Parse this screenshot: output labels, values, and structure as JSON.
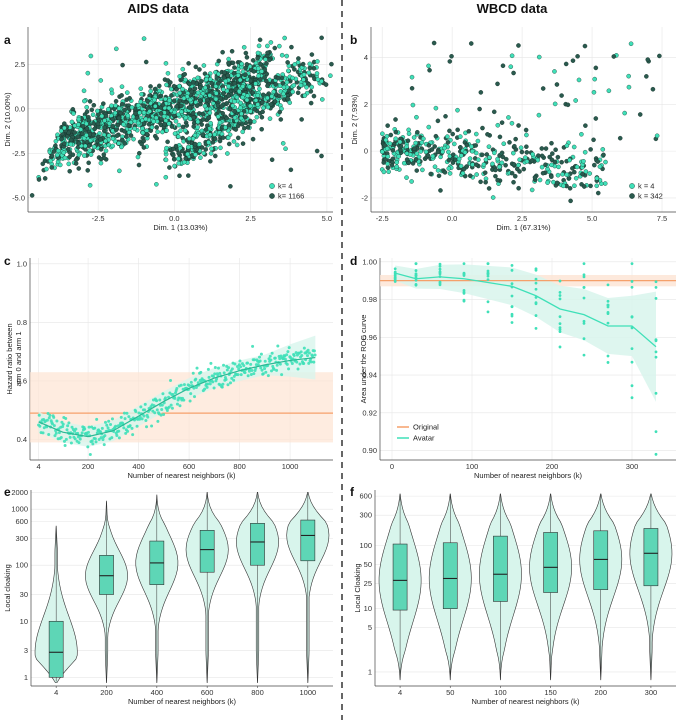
{
  "headers": {
    "left": "AIDS data",
    "right": "WBCD data"
  },
  "panel_labels": [
    "a",
    "b",
    "c",
    "d",
    "e",
    "f"
  ],
  "colors": {
    "light": "#3fe0b8",
    "dark": "#2a5a4e",
    "orange": "#f5a06a",
    "fill_light": "#d8f5ec",
    "box": "#5ed6b6"
  },
  "chart_data": [
    {
      "id": "a",
      "type": "scatter",
      "xlabel": "Dim. 1 (13.03%)",
      "ylabel": "Dim. 2 (10.00%)",
      "xlim": [
        -4.8,
        5.2
      ],
      "ylim": [
        -5.8,
        4.6
      ],
      "xticks": [
        "-2.5",
        "0.0",
        "2.5",
        "5.0"
      ],
      "xtick_values": [
        -2.5,
        0,
        2.5,
        5
      ],
      "yticks": [
        "-5.0",
        "-2.5",
        "0.0",
        "2.5"
      ],
      "ytick_values": [
        -5,
        -2.5,
        0,
        2.5
      ],
      "grid": true,
      "legend": "bottom-right",
      "series": [
        {
          "name": "k= 4",
          "color": "#3fe0b8"
        },
        {
          "name": "k= 1166",
          "color": "#2a5a4e"
        }
      ]
    },
    {
      "id": "b",
      "type": "scatter",
      "xlabel": "Dim. 1 (67.31%)",
      "ylabel": "Dim. 2 (7.93%)",
      "xlim": [
        -2.9,
        8.0
      ],
      "ylim": [
        -2.6,
        5.3
      ],
      "xticks": [
        "-2.5",
        "0.0",
        "2.5",
        "5.0",
        "7.5"
      ],
      "xtick_values": [
        -2.5,
        0,
        2.5,
        5,
        7.5
      ],
      "yticks": [
        "-2",
        "0",
        "2",
        "4"
      ],
      "ytick_values": [
        -2,
        0,
        2,
        4
      ],
      "grid": true,
      "legend": "bottom-right",
      "series": [
        {
          "name": "k = 4",
          "color": "#3fe0b8"
        },
        {
          "name": "k = 342",
          "color": "#2a5a4e"
        }
      ]
    },
    {
      "id": "c",
      "type": "scatter",
      "xlabel": "Number of nearest neighbors (k)",
      "ylabel": "Hazard ratio between arm 0 and arm 1",
      "xlim": [
        -30,
        1170
      ],
      "ylim": [
        0.33,
        1.02
      ],
      "xticks": [
        "4",
        "200",
        "400",
        "600",
        "800",
        "1000"
      ],
      "xtick_values": [
        4,
        200,
        400,
        600,
        800,
        1000
      ],
      "yticks": [
        "0.4",
        "0.6",
        "0.8",
        "1.0"
      ],
      "ytick_values": [
        0.4,
        0.6,
        0.8,
        1.0
      ],
      "original_hr": 0.49,
      "original_ci": [
        0.39,
        0.63
      ],
      "trend": [
        [
          4,
          0.46
        ],
        [
          100,
          0.425
        ],
        [
          200,
          0.41
        ],
        [
          300,
          0.43
        ],
        [
          400,
          0.48
        ],
        [
          500,
          0.53
        ],
        [
          600,
          0.575
        ],
        [
          700,
          0.61
        ],
        [
          800,
          0.635
        ],
        [
          900,
          0.655
        ],
        [
          1000,
          0.67
        ],
        [
          1100,
          0.68
        ]
      ]
    },
    {
      "id": "d",
      "type": "scatter",
      "xlabel": "Number of nearest neighbors (k)",
      "ylabel": "Area under the ROC curve",
      "xlim": [
        -15,
        355
      ],
      "ylim": [
        0.895,
        1.002
      ],
      "xticks": [
        "0",
        "100",
        "200",
        "300"
      ],
      "xtick_values": [
        0,
        100,
        200,
        300
      ],
      "yticks": [
        "0.90",
        "0.92",
        "0.94",
        "0.96",
        "0.98",
        "1.00"
      ],
      "ytick_values": [
        0.9,
        0.92,
        0.94,
        0.96,
        0.98,
        1.0
      ],
      "original_auc": 0.99,
      "original_ci": [
        0.987,
        0.993
      ],
      "ks": [
        4,
        30,
        60,
        90,
        120,
        150,
        180,
        210,
        240,
        270,
        300,
        330
      ],
      "avatar_mean": [
        0.994,
        0.991,
        0.992,
        0.991,
        0.989,
        0.987,
        0.982,
        0.975,
        0.972,
        0.966,
        0.966,
        0.955
      ],
      "legend": "bottom-left",
      "series": [
        {
          "name": "Original",
          "color": "#f5a06a"
        },
        {
          "name": "Avatar",
          "color": "#3fe0b8"
        }
      ]
    },
    {
      "id": "e",
      "type": "violin",
      "xlabel": "Number of nearest neighbors (k)",
      "ylabel": "Local cloaking",
      "scale": "log",
      "ylim": [
        0.7,
        2200
      ],
      "categories": [
        "4",
        "200",
        "400",
        "600",
        "800",
        "1000"
      ],
      "yticks": [
        "1",
        "3",
        "10",
        "30",
        "100",
        "300",
        "600",
        "1000",
        "2000"
      ],
      "ytick_values": [
        1,
        3,
        10,
        30,
        100,
        300,
        600,
        1000,
        2000
      ],
      "boxes": [
        {
          "q1": 1.0,
          "median": 2.8,
          "q3": 10,
          "min": 0.8,
          "max": 500
        },
        {
          "q1": 30,
          "median": 65,
          "q3": 150,
          "min": 0.8,
          "max": 1400
        },
        {
          "q1": 45,
          "median": 110,
          "q3": 270,
          "min": 0.8,
          "max": 1800
        },
        {
          "q1": 75,
          "median": 190,
          "q3": 420,
          "min": 0.8,
          "max": 2000
        },
        {
          "q1": 100,
          "median": 260,
          "q3": 560,
          "min": 0.8,
          "max": 2000
        },
        {
          "q1": 120,
          "median": 340,
          "q3": 640,
          "min": 0.8,
          "max": 2000
        }
      ]
    },
    {
      "id": "f",
      "type": "violin",
      "xlabel": "Number of nearest neighbors (k)",
      "ylabel": "Local Cloaking",
      "scale": "log",
      "ylim": [
        0.6,
        750
      ],
      "categories": [
        "4",
        "50",
        "100",
        "150",
        "200",
        "300"
      ],
      "yticks": [
        "1",
        "5",
        "10",
        "25",
        "50",
        "100",
        "300",
        "600"
      ],
      "ytick_values": [
        1,
        5,
        10,
        25,
        50,
        100,
        300,
        600
      ],
      "boxes": [
        {
          "q1": 9.5,
          "median": 28,
          "q3": 105,
          "min": 0.75,
          "max": 650
        },
        {
          "q1": 10,
          "median": 30,
          "q3": 110,
          "min": 0.75,
          "max": 650
        },
        {
          "q1": 13,
          "median": 35,
          "q3": 140,
          "min": 0.75,
          "max": 650
        },
        {
          "q1": 18,
          "median": 45,
          "q3": 160,
          "min": 0.75,
          "max": 650
        },
        {
          "q1": 20,
          "median": 60,
          "q3": 170,
          "min": 0.75,
          "max": 650
        },
        {
          "q1": 23,
          "median": 75,
          "q3": 185,
          "min": 0.75,
          "max": 650
        }
      ]
    }
  ]
}
